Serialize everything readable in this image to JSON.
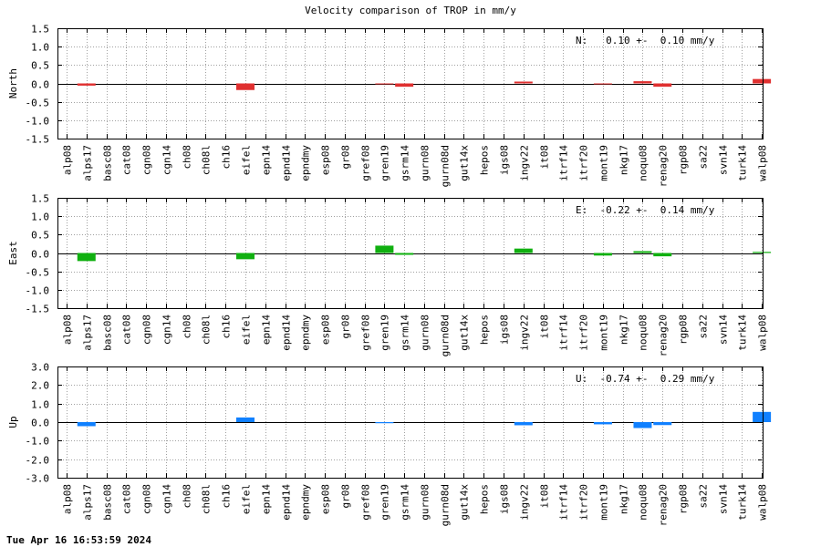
{
  "title": "Velocity comparison of TROP in mm/y",
  "timestamp": "Tue Apr 16 16:53:59 2024",
  "chart_data": [
    {
      "type": "bar",
      "ylabel": "North",
      "color": "#e03030",
      "ylim": [
        -1.5,
        1.5
      ],
      "yticks": [
        -1.5,
        -1.0,
        -0.5,
        0.0,
        0.5,
        1.0,
        1.5
      ],
      "ytick_labels": [
        "-1.5",
        "-1.0",
        "-0.5",
        "0.0",
        "0.5",
        "1.0",
        "1.5"
      ],
      "annotation": "N:   0.10 +-  0.10 mm/y",
      "grid": true,
      "categories": [
        "alp08",
        "alps17",
        "basc08",
        "cat08",
        "cgn08",
        "cgn14",
        "ch08",
        "ch08l",
        "ch16",
        "eifel",
        "epn14",
        "epnd14",
        "epndmy",
        "esp08",
        "gr08",
        "gref08",
        "gren19",
        "gsrm14",
        "gurn08",
        "gurn08d",
        "gut14x",
        "hepos",
        "igs08",
        "ingv22",
        "it08",
        "itrf14",
        "itrf20",
        "mont19",
        "nkg17",
        "noqu08",
        "renag20",
        "rgp08",
        "sa22",
        "svn14",
        "turk14",
        "walp08"
      ],
      "values": [
        0,
        -0.06,
        0,
        0,
        0,
        0,
        0,
        0,
        0,
        -0.18,
        0,
        0,
        0,
        0,
        0,
        0,
        -0.02,
        -0.09,
        0,
        0,
        0,
        0,
        0,
        0.05,
        0,
        0,
        0,
        -0.02,
        0,
        0.06,
        -0.09,
        0,
        0,
        0,
        0,
        0.12
      ]
    },
    {
      "type": "bar",
      "ylabel": "East",
      "color": "#10b010",
      "ylim": [
        -1.5,
        1.5
      ],
      "yticks": [
        -1.5,
        -1.0,
        -0.5,
        0.0,
        0.5,
        1.0,
        1.5
      ],
      "ytick_labels": [
        "-1.5",
        "-1.0",
        "-0.5",
        "0.0",
        "0.5",
        "1.0",
        "1.5"
      ],
      "annotation": "E:  -0.22 +-  0.14 mm/y",
      "grid": true,
      "categories": [
        "alp08",
        "alps17",
        "basc08",
        "cat08",
        "cgn08",
        "cgn14",
        "ch08",
        "ch08l",
        "ch16",
        "eifel",
        "epn14",
        "epnd14",
        "epndmy",
        "esp08",
        "gr08",
        "gref08",
        "gren19",
        "gsrm14",
        "gurn08",
        "gurn08d",
        "gut14x",
        "hepos",
        "igs08",
        "ingv22",
        "it08",
        "itrf14",
        "itrf20",
        "mont19",
        "nkg17",
        "noqu08",
        "renag20",
        "rgp08",
        "sa22",
        "svn14",
        "turk14",
        "walp08"
      ],
      "values": [
        0,
        -0.22,
        0,
        0,
        0,
        0,
        0,
        0,
        0,
        -0.17,
        0,
        0,
        0,
        0,
        0,
        0,
        0.2,
        -0.05,
        0,
        0,
        0,
        0,
        0,
        0.12,
        0,
        0,
        0,
        -0.07,
        0,
        0.05,
        -0.09,
        0,
        0,
        0,
        0,
        0.03
      ]
    },
    {
      "type": "bar",
      "ylabel": "Up",
      "color": "#1080ff",
      "ylim": [
        -3.0,
        3.0
      ],
      "yticks": [
        -3.0,
        -2.0,
        -1.0,
        0.0,
        1.0,
        2.0,
        3.0
      ],
      "ytick_labels": [
        "-3.0",
        "-2.0",
        "-1.0",
        "0.0",
        "1.0",
        "2.0",
        "3.0"
      ],
      "annotation": "U:  -0.74 +-  0.29 mm/y",
      "grid": true,
      "categories": [
        "alp08",
        "alps17",
        "basc08",
        "cat08",
        "cgn08",
        "cgn14",
        "ch08",
        "ch08l",
        "ch16",
        "eifel",
        "epn14",
        "epnd14",
        "epndmy",
        "esp08",
        "gr08",
        "gref08",
        "gren19",
        "gsrm14",
        "gurn08",
        "gurn08d",
        "gut14x",
        "hepos",
        "igs08",
        "ingv22",
        "it08",
        "itrf14",
        "itrf20",
        "mont19",
        "nkg17",
        "noqu08",
        "renag20",
        "rgp08",
        "sa22",
        "svn14",
        "turk14",
        "walp08"
      ],
      "values": [
        0,
        -0.22,
        0,
        0,
        0,
        0,
        0,
        0,
        0,
        0.25,
        0,
        0,
        0,
        0,
        0,
        0,
        -0.06,
        0,
        0,
        0,
        0,
        0,
        0,
        -0.17,
        0,
        0,
        0,
        -0.12,
        0,
        -0.32,
        -0.16,
        0,
        0,
        0,
        0,
        0.55
      ]
    }
  ]
}
